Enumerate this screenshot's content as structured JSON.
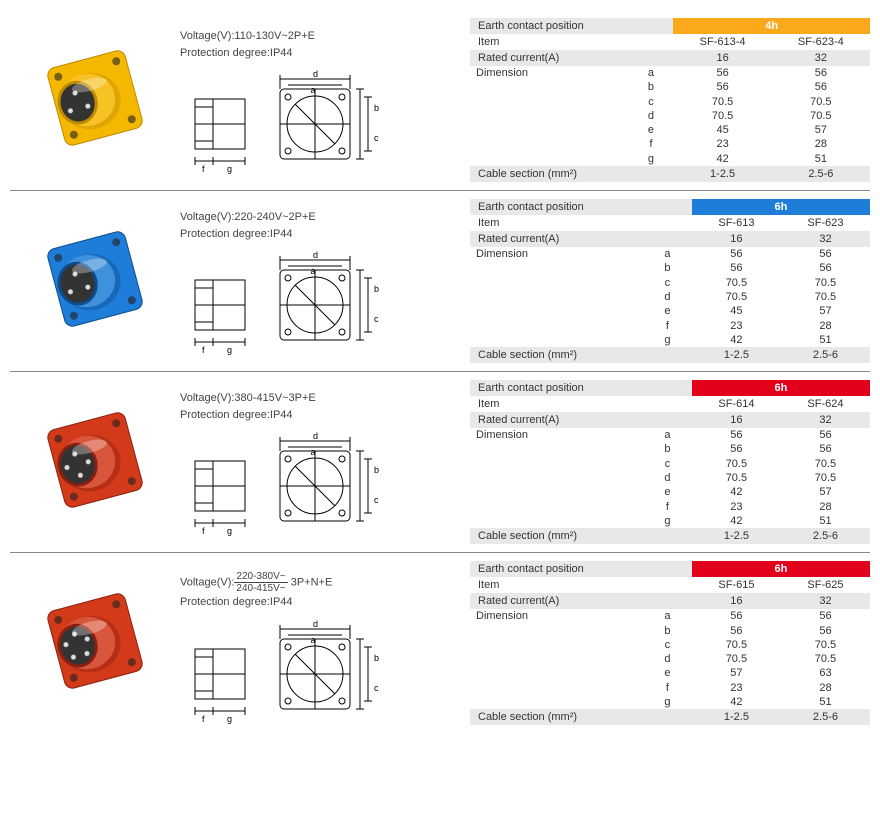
{
  "labels": {
    "voltage": "Voltage(V):",
    "protection": "Protection degree:",
    "earth": "Earth contact position",
    "item": "Item",
    "rated": "Rated current(A)",
    "dimension": "Dimension",
    "cable": "Cable section (mm²)"
  },
  "dim_letters": [
    "a",
    "b",
    "c",
    "d",
    "e",
    "f",
    "g"
  ],
  "products": [
    {
      "voltage": "110-130V~2P+E",
      "protection": "IP44",
      "plug_color": "#f5b800",
      "plug_shadow": "#c08a00",
      "pins": 3,
      "header_bg": "#f9a91a",
      "earth_pos": "4h",
      "items": [
        "SF-613-4",
        "SF-623-4"
      ],
      "rated": [
        "16",
        "32"
      ],
      "dims": [
        [
          "56",
          "56"
        ],
        [
          "56",
          "56"
        ],
        [
          "70.5",
          "70.5"
        ],
        [
          "70.5",
          "70.5"
        ],
        [
          "45",
          "57"
        ],
        [
          "23",
          "28"
        ],
        [
          "42",
          "51"
        ]
      ],
      "cable": [
        "1-2.5",
        "2.5-6"
      ]
    },
    {
      "voltage": "220-240V~2P+E",
      "protection": "IP44",
      "plug_color": "#1e7dd8",
      "plug_shadow": "#0d4c8a",
      "pins": 3,
      "header_bg": "#1e7dd8",
      "earth_pos": "6h",
      "items": [
        "SF-613",
        "SF-623"
      ],
      "rated": [
        "16",
        "32"
      ],
      "dims": [
        [
          "56",
          "56"
        ],
        [
          "56",
          "56"
        ],
        [
          "70.5",
          "70.5"
        ],
        [
          "70.5",
          "70.5"
        ],
        [
          "45",
          "57"
        ],
        [
          "23",
          "28"
        ],
        [
          "42",
          "51"
        ]
      ],
      "cable": [
        "1-2.5",
        "2.5-6"
      ]
    },
    {
      "voltage": "380-415V~3P+E",
      "protection": "IP44",
      "plug_color": "#d23a1a",
      "plug_shadow": "#8a2010",
      "pins": 4,
      "header_bg": "#e2001a",
      "earth_pos": "6h",
      "items": [
        "SF-614",
        "SF-624"
      ],
      "rated": [
        "16",
        "32"
      ],
      "dims": [
        [
          "56",
          "56"
        ],
        [
          "56",
          "56"
        ],
        [
          "70.5",
          "70.5"
        ],
        [
          "70.5",
          "70.5"
        ],
        [
          "42",
          "57"
        ],
        [
          "23",
          "28"
        ],
        [
          "42",
          "51"
        ]
      ],
      "cable": [
        "1-2.5",
        "2.5-6"
      ]
    },
    {
      "voltage_frac_top": "220-380V~",
      "voltage_frac_bot": "240-415V~",
      "voltage_suffix": " 3P+N+E",
      "protection": "IP44",
      "plug_color": "#d23a1a",
      "plug_shadow": "#8a2010",
      "pins": 5,
      "header_bg": "#e2001a",
      "earth_pos": "6h",
      "items": [
        "SF-615",
        "SF-625"
      ],
      "rated": [
        "16",
        "32"
      ],
      "dims": [
        [
          "56",
          "56"
        ],
        [
          "56",
          "56"
        ],
        [
          "70.5",
          "70.5"
        ],
        [
          "70.5",
          "70.5"
        ],
        [
          "57",
          "63"
        ],
        [
          "23",
          "28"
        ],
        [
          "42",
          "51"
        ]
      ],
      "cable": [
        "1-2.5",
        "2.5-6"
      ]
    }
  ]
}
